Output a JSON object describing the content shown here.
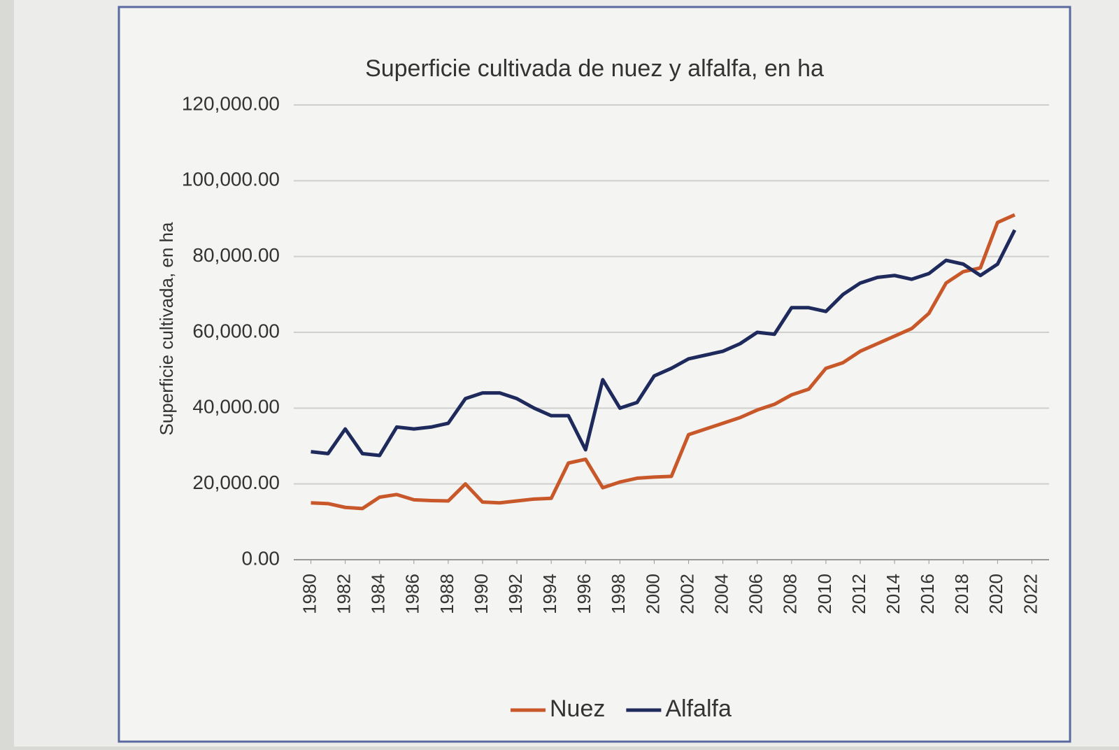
{
  "chart_data": {
    "type": "line",
    "title": "Superficie cultivada de nuez y alfalfa, en ha",
    "y_label": "Superficie cultivada, en ha",
    "x": [
      1980,
      1981,
      1982,
      1983,
      1984,
      1985,
      1986,
      1987,
      1988,
      1989,
      1990,
      1991,
      1992,
      1993,
      1994,
      1995,
      1996,
      1997,
      1998,
      1999,
      2000,
      2001,
      2002,
      2003,
      2004,
      2005,
      2006,
      2007,
      2008,
      2009,
      2010,
      2011,
      2012,
      2013,
      2014,
      2015,
      2016,
      2017,
      2018,
      2019,
      2020,
      2021
    ],
    "series": [
      {
        "name": "Nuez",
        "color": "#c8582a",
        "values": [
          15000,
          14800,
          13800,
          13500,
          16500,
          17200,
          15800,
          15600,
          15500,
          20000,
          15200,
          15000,
          15500,
          16000,
          16200,
          25500,
          26500,
          19000,
          20500,
          21500,
          21800,
          22000,
          33000,
          34500,
          36000,
          37500,
          39500,
          41000,
          43500,
          45000,
          50500,
          52000,
          55000,
          57000,
          59000,
          61000,
          65000,
          73000,
          76000,
          77000,
          89000,
          91000
        ]
      },
      {
        "name": "Alfalfa",
        "color": "#1f2a5c",
        "values": [
          28500,
          28000,
          34500,
          28000,
          27500,
          35000,
          34500,
          35000,
          36000,
          42500,
          44000,
          44000,
          42500,
          40000,
          38000,
          38000,
          29000,
          47500,
          40000,
          41500,
          48500,
          50500,
          53000,
          54000,
          55000,
          57000,
          60000,
          59500,
          66500,
          66500,
          65500,
          70000,
          73000,
          74500,
          75000,
          74000,
          75500,
          79000,
          78000,
          75000,
          78000,
          87000
        ]
      }
    ],
    "xlim": [
      1979,
      2023
    ],
    "xticks": [
      1980,
      1982,
      1984,
      1986,
      1988,
      1990,
      1992,
      1994,
      1996,
      1998,
      2000,
      2002,
      2004,
      2006,
      2008,
      2010,
      2012,
      2014,
      2016,
      2018,
      2020,
      2022
    ],
    "ylim": [
      0,
      120000
    ],
    "yticks": [
      {
        "value": 0,
        "label": "0.00"
      },
      {
        "value": 20000,
        "label": "20,000.00"
      },
      {
        "value": 40000,
        "label": "40,000.00"
      },
      {
        "value": 60000,
        "label": "60,000.00"
      },
      {
        "value": 80000,
        "label": "80,000.00"
      },
      {
        "value": 100000,
        "label": "100,000.00"
      },
      {
        "value": 120000,
        "label": "120,000.00"
      }
    ],
    "grid": true,
    "legend": "bottom"
  }
}
